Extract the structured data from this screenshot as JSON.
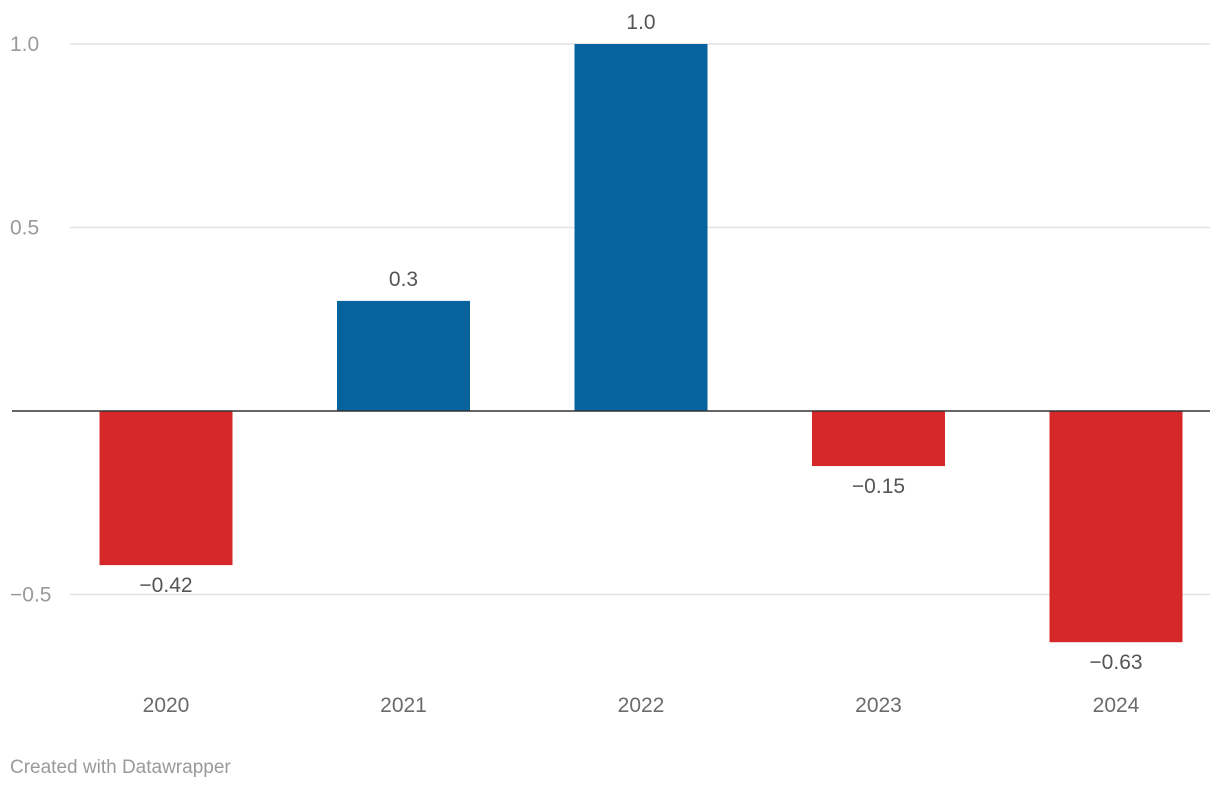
{
  "chart_data": {
    "type": "bar",
    "categories": [
      "2020",
      "2021",
      "2022",
      "2023",
      "2024"
    ],
    "values": [
      -0.42,
      0.3,
      1.0,
      -0.15,
      -0.63
    ],
    "value_labels": [
      "−0.42",
      "0.3",
      "1.0",
      "−0.15",
      "−0.63"
    ],
    "y_ticks": [
      1.0,
      0.5,
      -0.5
    ],
    "y_tick_labels": [
      "1.0",
      "0.5",
      "−0.5"
    ],
    "ylim": [
      -0.73,
      1.0
    ],
    "title": "",
    "xlabel": "",
    "ylabel": "",
    "grid": true,
    "colors": {
      "positive": "#06639e",
      "negative": "#d62828",
      "gridline": "#e2e2e2",
      "zero_line": "#333333"
    }
  },
  "footer": {
    "credit": "Created with Datawrapper"
  }
}
